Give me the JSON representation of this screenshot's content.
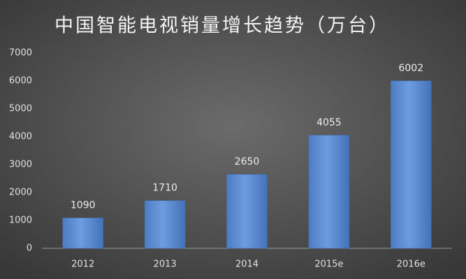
{
  "chart_data": {
    "type": "bar",
    "title": "中国智能电视销量增长趋势（万台）",
    "categories": [
      "2012",
      "2013",
      "2014",
      "2015e",
      "2016e"
    ],
    "values": [
      1090,
      1710,
      2650,
      4055,
      6002
    ],
    "color": "#5a8ad2",
    "ylim": [
      0,
      7000
    ],
    "yticks": [
      0,
      1000,
      2000,
      3000,
      4000,
      5000,
      6000,
      7000
    ],
    "grid": false
  }
}
